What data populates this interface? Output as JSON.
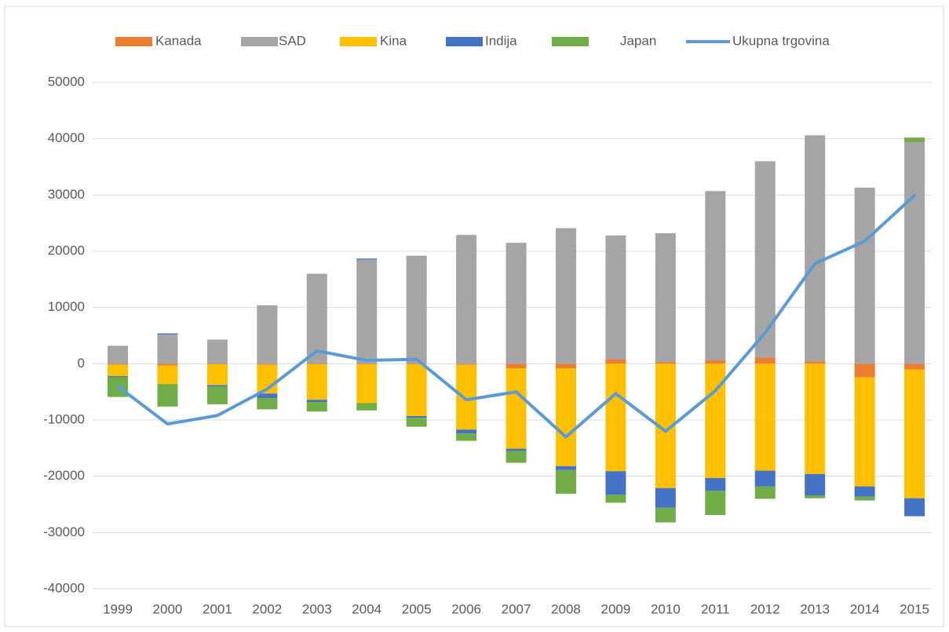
{
  "chart_data": {
    "type": "bar",
    "categories": [
      "1999",
      "2000",
      "2001",
      "2002",
      "2003",
      "2004",
      "2005",
      "2006",
      "2007",
      "2008",
      "2009",
      "2010",
      "2011",
      "2012",
      "2013",
      "2014",
      "2015"
    ],
    "series": [
      {
        "name": "Kanada",
        "color": "#ed7d31",
        "values": [
          -200,
          -300,
          -100,
          -200,
          -100,
          -100,
          -100,
          -200,
          -800,
          -800,
          800,
          300,
          600,
          1100,
          400,
          -2400,
          -1000
        ]
      },
      {
        "name": "SAD",
        "color": "#a5a5a5",
        "values": [
          3200,
          5200,
          4300,
          10400,
          16000,
          18500,
          19200,
          22900,
          21500,
          24100,
          22000,
          22900,
          30100,
          34900,
          40200,
          31300,
          39400
        ]
      },
      {
        "name": "Kina",
        "color": "#ffc000",
        "values": [
          -2000,
          -3300,
          -3700,
          -5100,
          -6300,
          -6900,
          -9200,
          -11500,
          -14300,
          -17400,
          -19100,
          -22100,
          -20300,
          -19000,
          -19600,
          -19400,
          -22900
        ]
      },
      {
        "name": "Indija",
        "color": "#4472c4",
        "values": [
          -200,
          200,
          -300,
          -800,
          -400,
          200,
          -300,
          -700,
          -400,
          -700,
          -4200,
          -3500,
          -2300,
          -2800,
          -3800,
          -1800,
          -3200
        ]
      },
      {
        "name": "Japan",
        "color": "#70ad47",
        "values": [
          -3500,
          -4000,
          -3100,
          -2000,
          -1700,
          -1300,
          -1600,
          -1300,
          -2100,
          -4200,
          -1400,
          -2600,
          -4300,
          -2200,
          -500,
          -700,
          800
        ]
      },
      {
        "name": "Ukupna trgovina",
        "type": "line",
        "color": "#5b9bd5",
        "values": [
          -4000,
          -10700,
          -9200,
          -4500,
          2300,
          600,
          800,
          -6400,
          -5000,
          -13000,
          -5300,
          -12000,
          -4800,
          5500,
          17800,
          21800,
          29900
        ]
      }
    ],
    "ylim": [
      -40000,
      50000
    ],
    "yticks": [
      -40000,
      -30000,
      -20000,
      -10000,
      0,
      10000,
      20000,
      30000,
      40000,
      50000
    ],
    "grid": true,
    "legend": "top"
  }
}
